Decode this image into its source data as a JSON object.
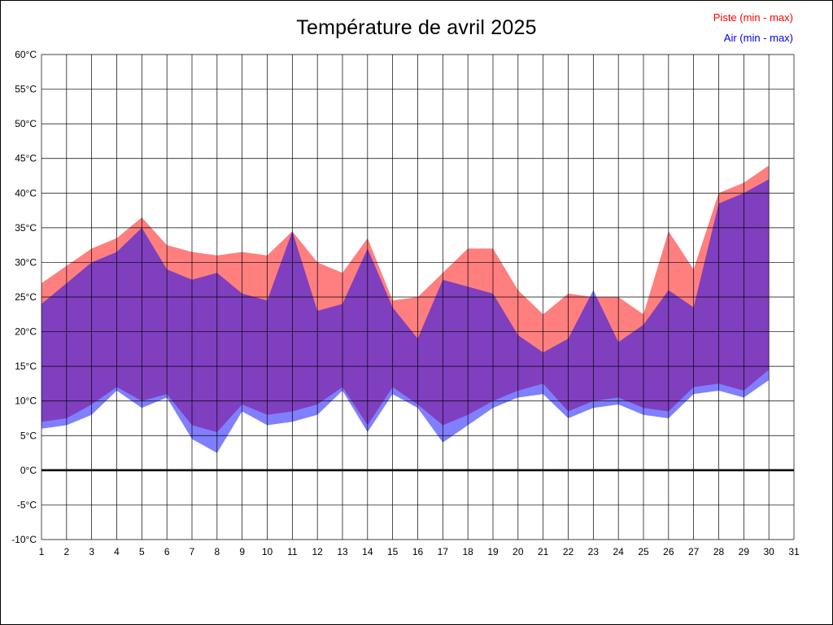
{
  "chart_data": {
    "type": "area",
    "title": "Température de avril 2025",
    "legend_position": "top-right",
    "grid": true,
    "xlabel": "",
    "ylabel": "",
    "xlim": [
      1,
      31
    ],
    "ylim": [
      -10,
      60
    ],
    "ytick_step": 5,
    "yticks": [
      "60°C",
      "55°C",
      "50°C",
      "45°C",
      "40°C",
      "35°C",
      "30°C",
      "25°C",
      "20°C",
      "15°C",
      "10°C",
      "5°C",
      "0°C",
      "-5°C",
      "-10°C"
    ],
    "xticks": [
      1,
      2,
      3,
      4,
      5,
      6,
      7,
      8,
      9,
      10,
      11,
      12,
      13,
      14,
      15,
      16,
      17,
      18,
      19,
      20,
      21,
      22,
      23,
      24,
      25,
      26,
      27,
      28,
      29,
      30,
      31
    ],
    "x_days": [
      1,
      2,
      3,
      4,
      5,
      6,
      7,
      8,
      9,
      10,
      11,
      12,
      13,
      14,
      15,
      16,
      17,
      18,
      19,
      20,
      21,
      22,
      23,
      24,
      25,
      26,
      27,
      28,
      29,
      30
    ],
    "zero_line": 0,
    "colors": {
      "piste": "#ff0000",
      "air": "#0000ff",
      "overlap_appearance": "#8040c0",
      "grid": "#000000"
    },
    "series": [
      {
        "name": "Piste (min - max)",
        "color": "#ff0000",
        "min": [
          7,
          7.5,
          9.5,
          12,
          10,
          11,
          6.5,
          5.5,
          9.5,
          8,
          8.5,
          9.5,
          12,
          6.5,
          12,
          9.5,
          6.5,
          8,
          10,
          11.5,
          12.5,
          8.5,
          10,
          10.5,
          9,
          8.5,
          12,
          12.5,
          11.5,
          14.5
        ],
        "max": [
          27,
          29.5,
          32,
          33.5,
          36.5,
          32.5,
          31.5,
          31,
          31.5,
          31,
          34.5,
          30,
          28.5,
          33.5,
          24.5,
          25,
          28.5,
          32,
          32,
          26,
          22.5,
          25.5,
          25,
          25,
          22.5,
          34.5,
          29,
          40,
          41.5,
          44
        ]
      },
      {
        "name": "Air (min - max)",
        "color": "#0000ff",
        "min": [
          6,
          6.5,
          8,
          11.5,
          9,
          10.5,
          4.5,
          2.5,
          8.5,
          6.5,
          7,
          8,
          11.5,
          5.5,
          11,
          9,
          4,
          6.5,
          9,
          10.5,
          11,
          7.5,
          9,
          9.5,
          8,
          7.5,
          11,
          11.5,
          10.5,
          13
        ],
        "max": [
          24,
          27,
          30,
          31.5,
          35,
          29,
          27.5,
          28.5,
          25.5,
          24.5,
          34.5,
          23,
          24,
          32,
          23.5,
          19,
          27.5,
          26.5,
          25.5,
          19.5,
          17,
          19,
          26,
          18.5,
          21,
          26,
          23.5,
          38.5,
          40,
          42
        ]
      }
    ]
  }
}
